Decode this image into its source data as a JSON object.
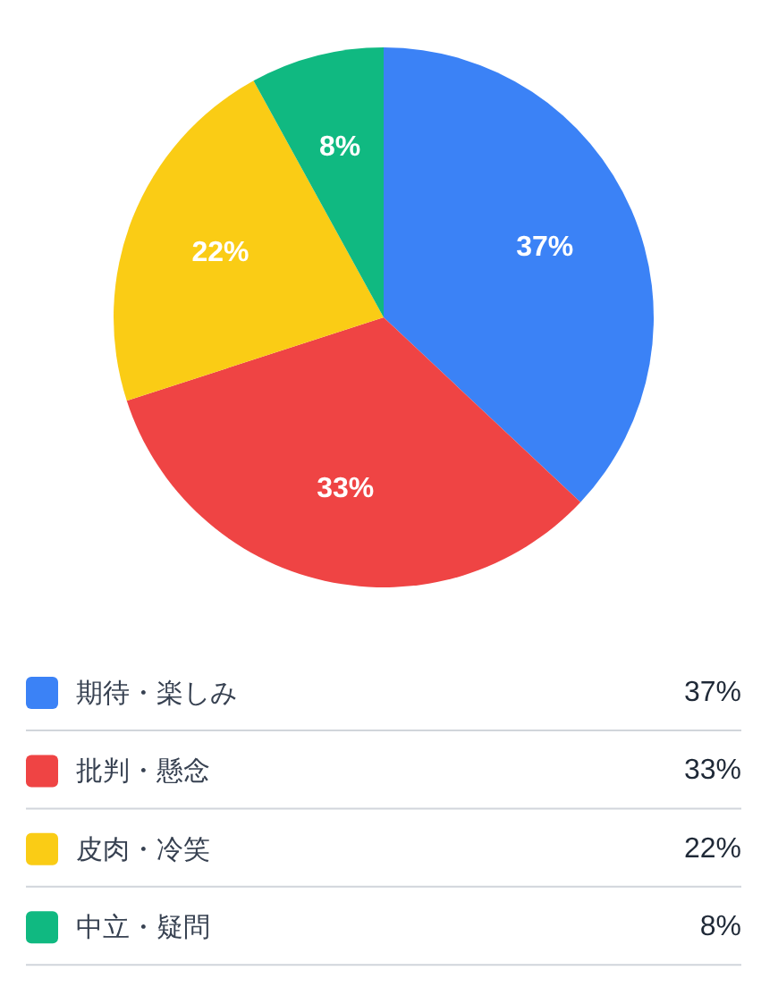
{
  "chart_data": {
    "type": "pie",
    "categories": [
      "期待・楽しみ",
      "批判・懸念",
      "皮肉・冷笑",
      "中立・疑問"
    ],
    "values": [
      37,
      33,
      22,
      8
    ],
    "colors": [
      "#3b82f6",
      "#ef4444",
      "#facc15",
      "#10b981"
    ],
    "value_labels": [
      "37%",
      "33%",
      "22%",
      "8%"
    ],
    "legend": "bottom"
  }
}
